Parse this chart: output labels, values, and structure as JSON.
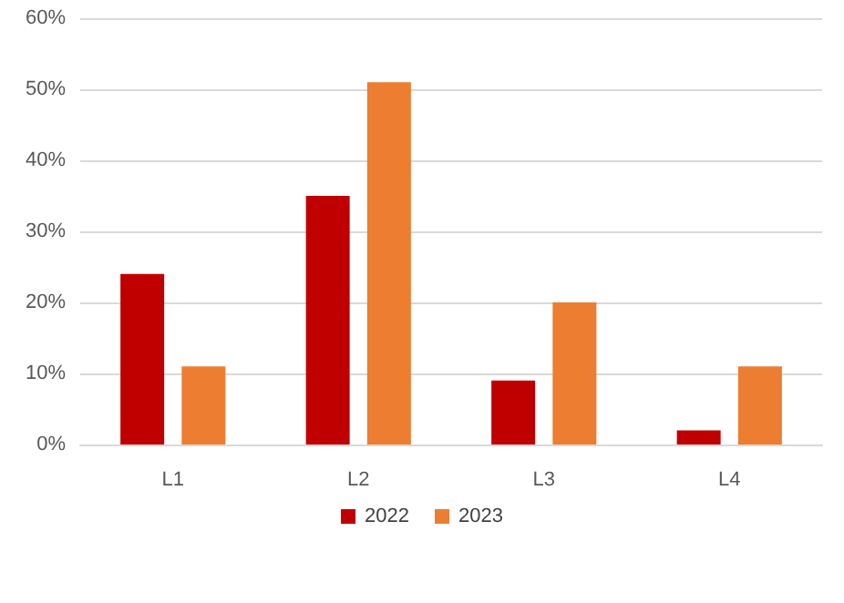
{
  "chart_data": {
    "type": "bar",
    "categories": [
      "L1",
      "L2",
      "L3",
      "L4"
    ],
    "series": [
      {
        "name": "2022",
        "color": "#c00000",
        "values": [
          24,
          35,
          9,
          2
        ]
      },
      {
        "name": "2023",
        "color": "#ed7d31",
        "values": [
          11,
          51,
          20,
          11
        ]
      }
    ],
    "ylim": [
      0,
      60
    ],
    "yticks": [
      {
        "value": 0,
        "label": "0%"
      },
      {
        "value": 10,
        "label": "10%"
      },
      {
        "value": 20,
        "label": "20%"
      },
      {
        "value": 30,
        "label": "30%"
      },
      {
        "value": 40,
        "label": "40%"
      },
      {
        "value": 50,
        "label": "50%"
      },
      {
        "value": 60,
        "label": "60%"
      }
    ],
    "grid": "y",
    "legend": "bottom"
  }
}
